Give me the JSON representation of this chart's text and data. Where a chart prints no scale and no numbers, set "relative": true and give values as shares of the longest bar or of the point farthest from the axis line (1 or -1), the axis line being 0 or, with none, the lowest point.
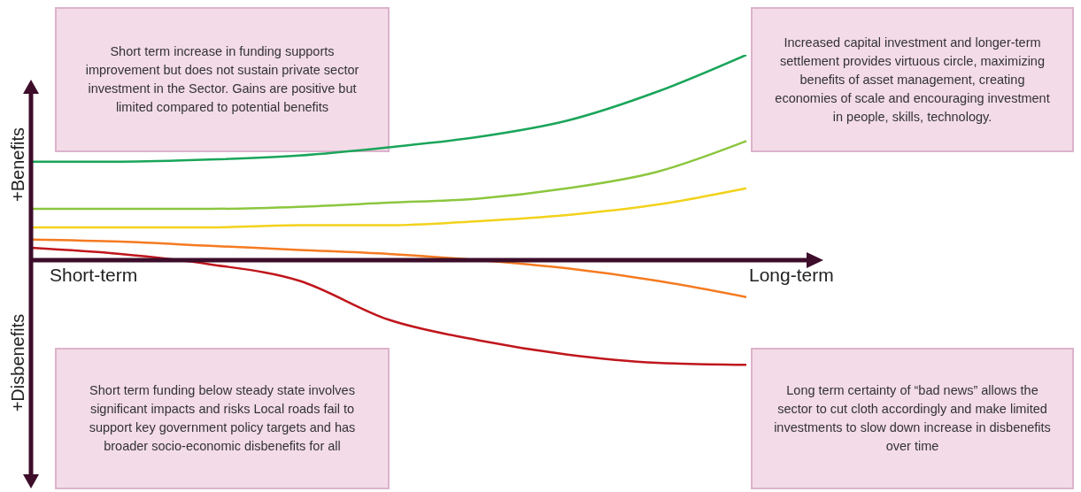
{
  "chart_data": {
    "type": "line",
    "relative": true,
    "ylabel": "+Benefits",
    "categories": [
      null,
      null,
      null,
      null,
      null,
      null,
      null,
      null,
      null
    ],
    "series": [
      {
        "color": "#1aa55a",
        "values": [
          0.48,
          0.48,
          0.49,
          0.51,
          0.55,
          0.6,
          0.68,
          0.82,
          1.0
        ]
      },
      {
        "color": "#8cc63f",
        "values": [
          0.25,
          0.25,
          0.25,
          0.26,
          0.28,
          0.3,
          0.35,
          0.43,
          0.58
        ]
      },
      {
        "color": "#f2d21b",
        "values": [
          0.16,
          0.16,
          0.16,
          0.17,
          0.17,
          0.19,
          0.22,
          0.27,
          0.35
        ]
      },
      {
        "color": "#f57a20",
        "values": [
          0.1,
          0.09,
          0.07,
          0.05,
          0.03,
          0.0,
          -0.04,
          -0.1,
          -0.18
        ]
      },
      {
        "color": "#c0161c",
        "values": [
          0.06,
          0.03,
          -0.02,
          -0.1,
          -0.29,
          -0.39,
          -0.46,
          -0.5,
          -0.51
        ]
      }
    ],
    "annotations": [
      "Short term increase in funding supports improvement but does not sustain private sector investment in the Sector. Gains are positive but limited compared to potential benefits",
      "Increased capital investment and longer-term settlement provides virtuous circle, maximizing benefits of asset management, creating economies of scale and encouraging investment in people, skills, technology.",
      "Short term funding below steady state involves significant impacts and risks Local roads fail to support key government policy targets and has broader socio-economic disbenefits for all",
      "Long term certainty of “bad news” allows the sector to cut cloth accordingly and make limited investments to slow down increase in disbenefits over time",
      "+Disbenefits",
      "Short-term",
      "Long-term"
    ],
    "line_style": "solid",
    "marker": "none",
    "grid": false,
    "legend": false
  }
}
